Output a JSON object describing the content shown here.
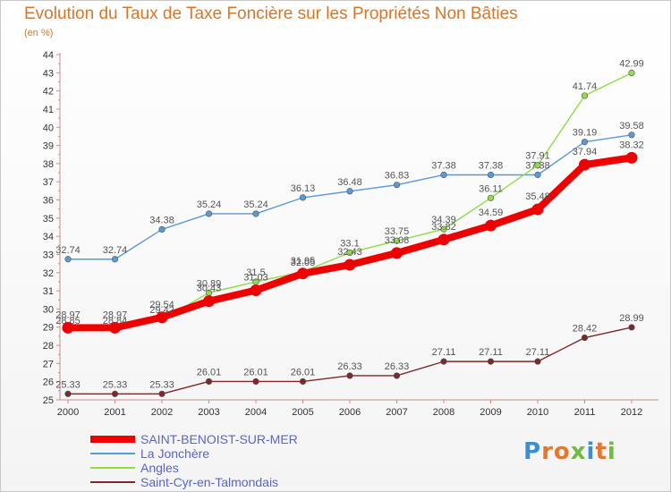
{
  "title": "Evolution du Taux de Taxe Foncière sur les Propriétés Non Bâties",
  "unit_label": "(en %)",
  "brand": {
    "text": "Proxiti",
    "letter_colors": [
      "#3a8fd0",
      "#e7772b",
      "#e7772b",
      "#6fbd3c",
      "#3a8fd0",
      "#e7772b",
      "#6fbd3c"
    ]
  },
  "chart_data": {
    "type": "line",
    "title": "Evolution du Taux de Taxe Foncière sur les Propriétés Non Bâties",
    "ylabel": "(en %)",
    "xlabel": "",
    "x": [
      "2000",
      "2001",
      "2002",
      "2003",
      "2004",
      "2005",
      "2006",
      "2007",
      "2008",
      "2009",
      "2010",
      "2011",
      "2012"
    ],
    "ylim": [
      25,
      44
    ],
    "yticks": [
      "25",
      "26",
      "27",
      "28",
      "29",
      "30",
      "31",
      "32",
      "33",
      "34",
      "35",
      "36",
      "37",
      "38",
      "39",
      "40",
      "41",
      "42",
      "43",
      "44"
    ],
    "grid": false,
    "legend_position": "bottom",
    "series": [
      {
        "name": "SAINT-BENOIST-SUR-MER",
        "color": "#ee0000",
        "emphasis": true,
        "values": [
          28.97,
          28.97,
          29.54,
          30.43,
          31.03,
          31.95,
          32.43,
          33.08,
          33.82,
          34.59,
          35.48,
          37.94,
          38.32
        ],
        "labels": [
          "28.97",
          "28.97",
          "29.54",
          "30.43",
          "31.03",
          "31.95",
          "32.43",
          "33.08",
          "33.82",
          "34.59",
          "35.48",
          "37.94",
          "38.32"
        ]
      },
      {
        "name": "La Jonchère",
        "color": "#5b9ad2",
        "values": [
          32.74,
          32.74,
          34.38,
          35.24,
          35.24,
          36.13,
          36.48,
          36.83,
          37.38,
          37.38,
          37.38,
          39.19,
          39.58
        ],
        "labels": [
          "32.74",
          "32.74",
          "34.38",
          "35.24",
          "35.24",
          "36.13",
          "36.48",
          "36.83",
          "37.38",
          "37.38",
          "37.38",
          "39.19",
          "39.58"
        ]
      },
      {
        "name": "Angles",
        "color": "#90dc4a",
        "values": [
          28.85,
          28.84,
          29.42,
          30.89,
          31.5,
          32.05,
          33.1,
          33.75,
          34.39,
          36.11,
          37.91,
          41.74,
          42.99
        ],
        "labels": [
          "28.85",
          "28.84",
          "29.42",
          "30.89",
          "31.5",
          "32.05",
          "33.1",
          "33.75",
          "34.39",
          "36.11",
          "37.91",
          "41.74",
          "42.99"
        ]
      },
      {
        "name": "Saint-Cyr-en-Talmondais",
        "color": "#7a2a2a",
        "values": [
          25.33,
          25.33,
          25.33,
          26.01,
          26.01,
          26.01,
          26.33,
          26.33,
          27.11,
          27.11,
          27.11,
          28.42,
          28.99
        ],
        "labels": [
          "25.33",
          "25.33",
          "25.33",
          "26.01",
          "26.01",
          "26.01",
          "26.33",
          "26.33",
          "27.11",
          "27.11",
          "27.11",
          "28.42",
          "28.99"
        ]
      }
    ]
  }
}
